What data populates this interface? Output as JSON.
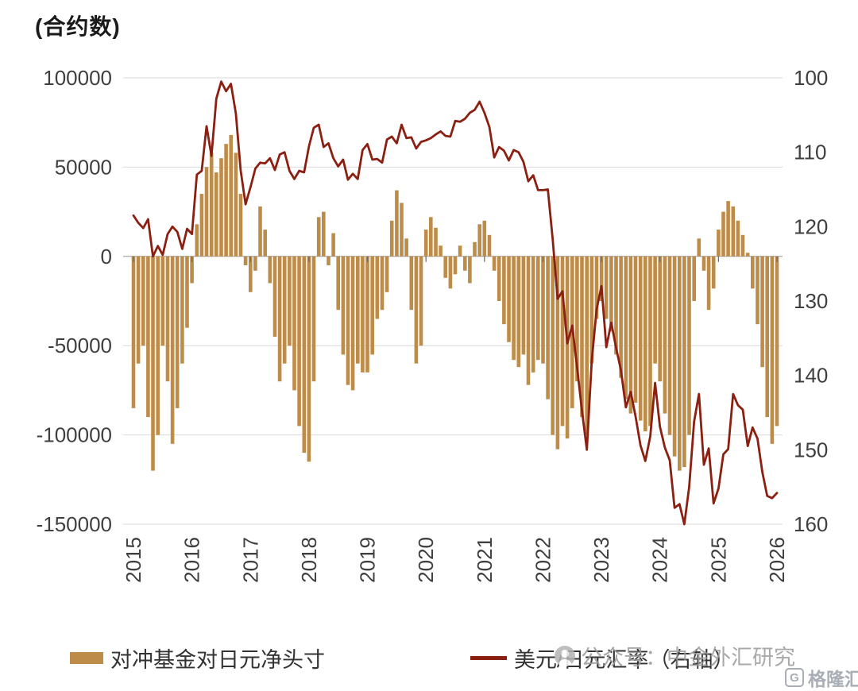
{
  "title": "(合约数)",
  "legend": {
    "bar_label": "对冲基金对日元净头寸",
    "line_label": "美元/日元汇率（右轴）"
  },
  "watermark": {
    "text": "公众号：中金外汇研究"
  },
  "logo": {
    "mark": "G",
    "text": "格隆汇"
  },
  "colors": {
    "bar": "#be8c49",
    "line": "#8b2012",
    "grid": "#d9d9d9",
    "zero_axis": "#9b9b9b",
    "tick": "#666666",
    "axis_text": "#3f3f3f"
  },
  "chart_data": {
    "type": "combo",
    "x_start": 2015.0,
    "x_step": 0.0833333333,
    "x_ticks": [
      2015,
      2016,
      2017,
      2018,
      2019,
      2020,
      2021,
      2022,
      2023,
      2024,
      2025,
      2026
    ],
    "left_axis": {
      "label": "(合约数)",
      "min": -150000,
      "max": 100000,
      "ticks": [
        100000,
        50000,
        0,
        -50000,
        -100000,
        -150000
      ]
    },
    "right_axis": {
      "min": 100,
      "max": 160,
      "inverted": true,
      "ticks": [
        100,
        110,
        120,
        130,
        140,
        150,
        160
      ]
    },
    "grid": "horizontal-left-ticks-only",
    "legend_position": "bottom",
    "series": [
      {
        "name": "对冲基金对日元净头寸",
        "type": "bar",
        "axis": "left",
        "values": [
          -85000,
          -60000,
          -50000,
          -90000,
          -120000,
          -100000,
          -50000,
          -70000,
          -105000,
          -85000,
          -60000,
          -40000,
          -15000,
          18000,
          35000,
          50000,
          58000,
          47000,
          55000,
          63000,
          68000,
          58000,
          35000,
          -5000,
          -20000,
          -8000,
          28000,
          15000,
          -15000,
          -45000,
          -70000,
          -60000,
          -50000,
          -75000,
          -95000,
          -110000,
          -115000,
          -70000,
          22000,
          25000,
          -5000,
          13000,
          -30000,
          -55000,
          -72000,
          -75000,
          -60000,
          -65000,
          -65000,
          -55000,
          -35000,
          -30000,
          -20000,
          20000,
          37000,
          30000,
          10000,
          -30000,
          -60000,
          -50000,
          15000,
          22000,
          16000,
          6000,
          -12000,
          -18000,
          -10000,
          6000,
          -8000,
          -15000,
          8000,
          18000,
          20000,
          12000,
          -8000,
          -25000,
          -38000,
          -48000,
          -58000,
          -62000,
          -55000,
          -72000,
          -65000,
          -58000,
          -60000,
          -80000,
          -100000,
          -108000,
          -95000,
          -102000,
          -85000,
          -70000,
          -90000,
          -100000,
          -60000,
          -35000,
          -25000,
          -35000,
          -42000,
          -55000,
          -68000,
          -80000,
          -88000,
          -82000,
          -92000,
          -98000,
          -95000,
          -60000,
          -70000,
          -88000,
          -100000,
          -112000,
          -120000,
          -118000,
          -100000,
          -25000,
          10000,
          -8000,
          -30000,
          -18000,
          15000,
          25000,
          31000,
          28000,
          20000,
          12000,
          2000,
          -18000,
          -38000,
          -62000,
          -90000,
          -105000,
          -95000
        ]
      },
      {
        "name": "美元/日元汇率（右轴）",
        "type": "line",
        "axis": "right",
        "values": [
          118.5,
          119.5,
          120.2,
          119.0,
          124.0,
          122.6,
          123.8,
          121.0,
          120.0,
          120.7,
          123.0,
          120.3,
          121.0,
          113.0,
          112.5,
          106.5,
          110.5,
          102.8,
          100.5,
          101.8,
          100.8,
          104.8,
          112.5,
          117.0,
          114.7,
          112.2,
          111.4,
          111.5,
          110.8,
          112.4,
          110.3,
          110.0,
          112.5,
          113.6,
          112.5,
          112.7,
          109.2,
          106.7,
          106.3,
          109.3,
          108.8,
          110.8,
          111.9,
          111.0,
          113.7,
          112.9,
          113.6,
          109.7,
          108.9,
          111.0,
          110.9,
          111.4,
          108.3,
          107.9,
          108.8,
          106.3,
          108.1,
          108.0,
          109.5,
          108.6,
          108.4,
          108.1,
          107.6,
          107.2,
          107.8,
          107.9,
          105.8,
          105.9,
          105.5,
          104.7,
          104.3,
          103.2,
          104.7,
          106.6,
          110.7,
          109.3,
          109.8,
          111.1,
          109.7,
          110.0,
          111.3,
          113.9,
          113.1,
          115.1,
          115.1,
          115.0,
          121.7,
          129.7,
          128.7,
          135.7,
          133.3,
          138.9,
          144.7,
          150.0,
          138.1,
          131.1,
          128.0,
          136.2,
          132.9,
          136.3,
          139.3,
          144.3,
          142.2,
          145.5,
          149.4,
          151.5,
          148.2,
          141.0,
          146.9,
          149.7,
          151.4,
          157.8,
          157.3,
          160.0,
          155.0,
          146.2,
          142.5,
          152.0,
          149.8,
          157.2,
          155.2,
          150.6,
          149.9,
          142.5,
          144.0,
          144.6,
          149.5,
          147.0,
          148.5,
          153.0,
          156.2,
          156.5,
          155.8
        ]
      }
    ]
  }
}
